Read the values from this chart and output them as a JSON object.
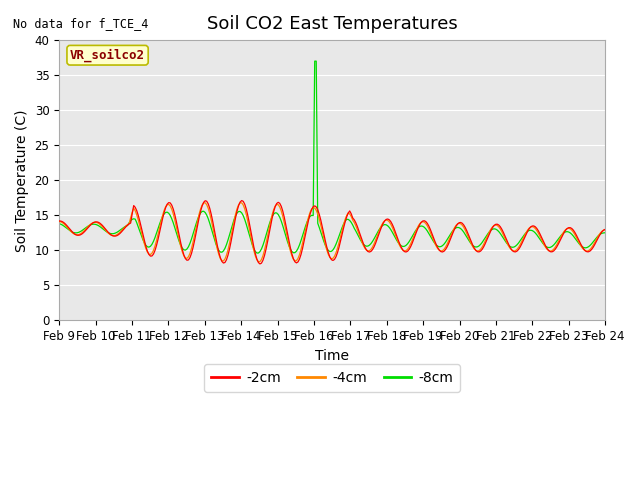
{
  "title": "Soil CO2 East Temperatures",
  "xlabel": "Time",
  "ylabel": "Soil Temperature (C)",
  "no_data_text": "No data for f_TCE_4",
  "legend_label_text": "VR_soilco2",
  "ylim": [
    0,
    40
  ],
  "bg_color": "#e8e8e8",
  "line_colors": {
    "neg2cm": "#ff0000",
    "neg4cm": "#ff8800",
    "neg8cm": "#00dd00"
  },
  "legend_labels": [
    "-2cm",
    "-4cm",
    "-8cm"
  ],
  "xtick_labels": [
    "Feb 9",
    "Feb 10",
    "Feb 11",
    "Feb 12",
    "Feb 13",
    "Feb 14",
    "Feb 15",
    "Feb 16",
    "Feb 17",
    "Feb 18",
    "Feb 19",
    "Feb 20",
    "Feb 21",
    "Feb 22",
    "Feb 23",
    "Feb 24"
  ],
  "figsize": [
    6.4,
    4.8
  ],
  "dpi": 100,
  "title_fontsize": 13,
  "axis_label_fontsize": 10,
  "tick_fontsize": 8.5
}
